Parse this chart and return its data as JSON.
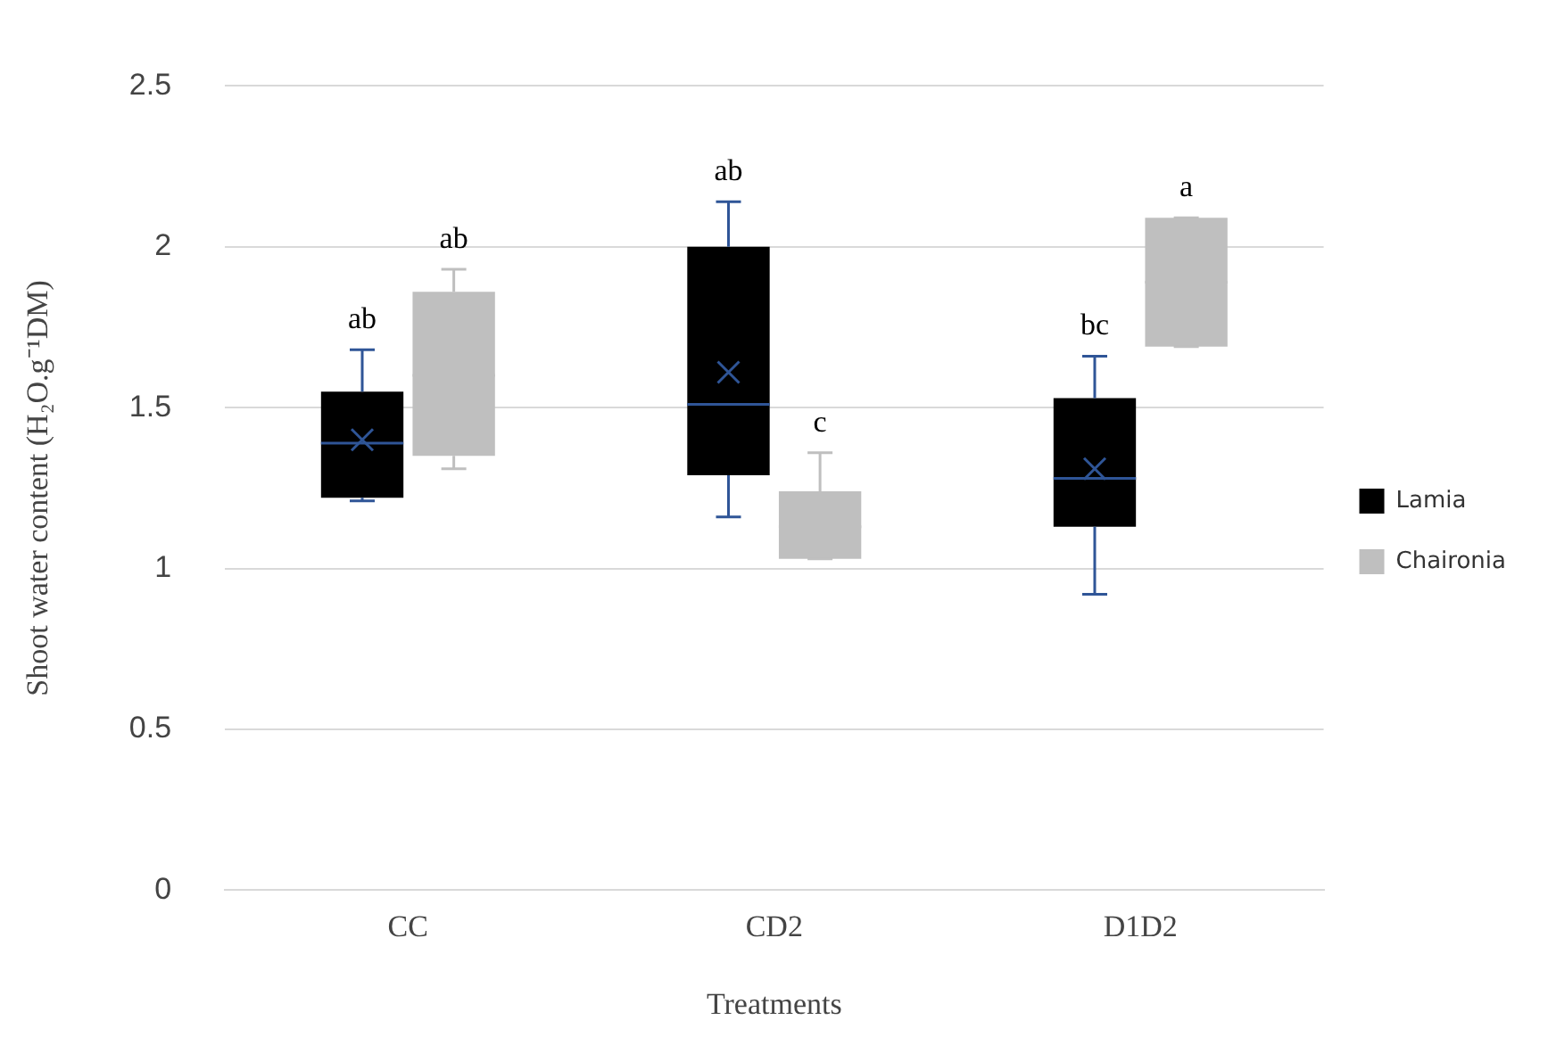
{
  "chart_data": {
    "type": "box",
    "ylabel": "Shoot water content (H₂O.g⁻¹DM)",
    "xlabel": "Treatments",
    "categories": [
      "CC",
      "CD2",
      "D1D2"
    ],
    "ylim": [
      0,
      2.5
    ],
    "yticks": [
      0,
      0.5,
      1,
      1.5,
      2,
      2.5
    ],
    "grid": "y",
    "legend": "right",
    "marker": "cross",
    "series": [
      {
        "name": "Lamia",
        "color": "#000000",
        "boxes": [
          {
            "low": 1.21,
            "q1": 1.22,
            "median": 1.39,
            "q3": 1.55,
            "high": 1.68,
            "mean": 1.4
          },
          {
            "low": 1.16,
            "q1": 1.29,
            "median": 1.51,
            "q3": 2.0,
            "high": 2.14,
            "mean": 1.61
          },
          {
            "low": 0.92,
            "q1": 1.13,
            "median": 1.28,
            "q3": 1.53,
            "high": 1.66,
            "mean": 1.31
          }
        ]
      },
      {
        "name": "Chaironia",
        "color": "#bfbfbf",
        "boxes": [
          {
            "low": 1.31,
            "q1": 1.35,
            "median": 1.6,
            "q3": 1.86,
            "high": 1.93
          },
          {
            "low": 1.03,
            "q1": 1.03,
            "median": 1.13,
            "q3": 1.24,
            "high": 1.36
          },
          {
            "low": 1.69,
            "q1": 1.69,
            "median": 1.89,
            "q3": 2.09,
            "high": 2.09
          }
        ]
      }
    ],
    "annotations": [
      "ab",
      "ab",
      "ab",
      "c",
      "bc",
      "a"
    ]
  }
}
